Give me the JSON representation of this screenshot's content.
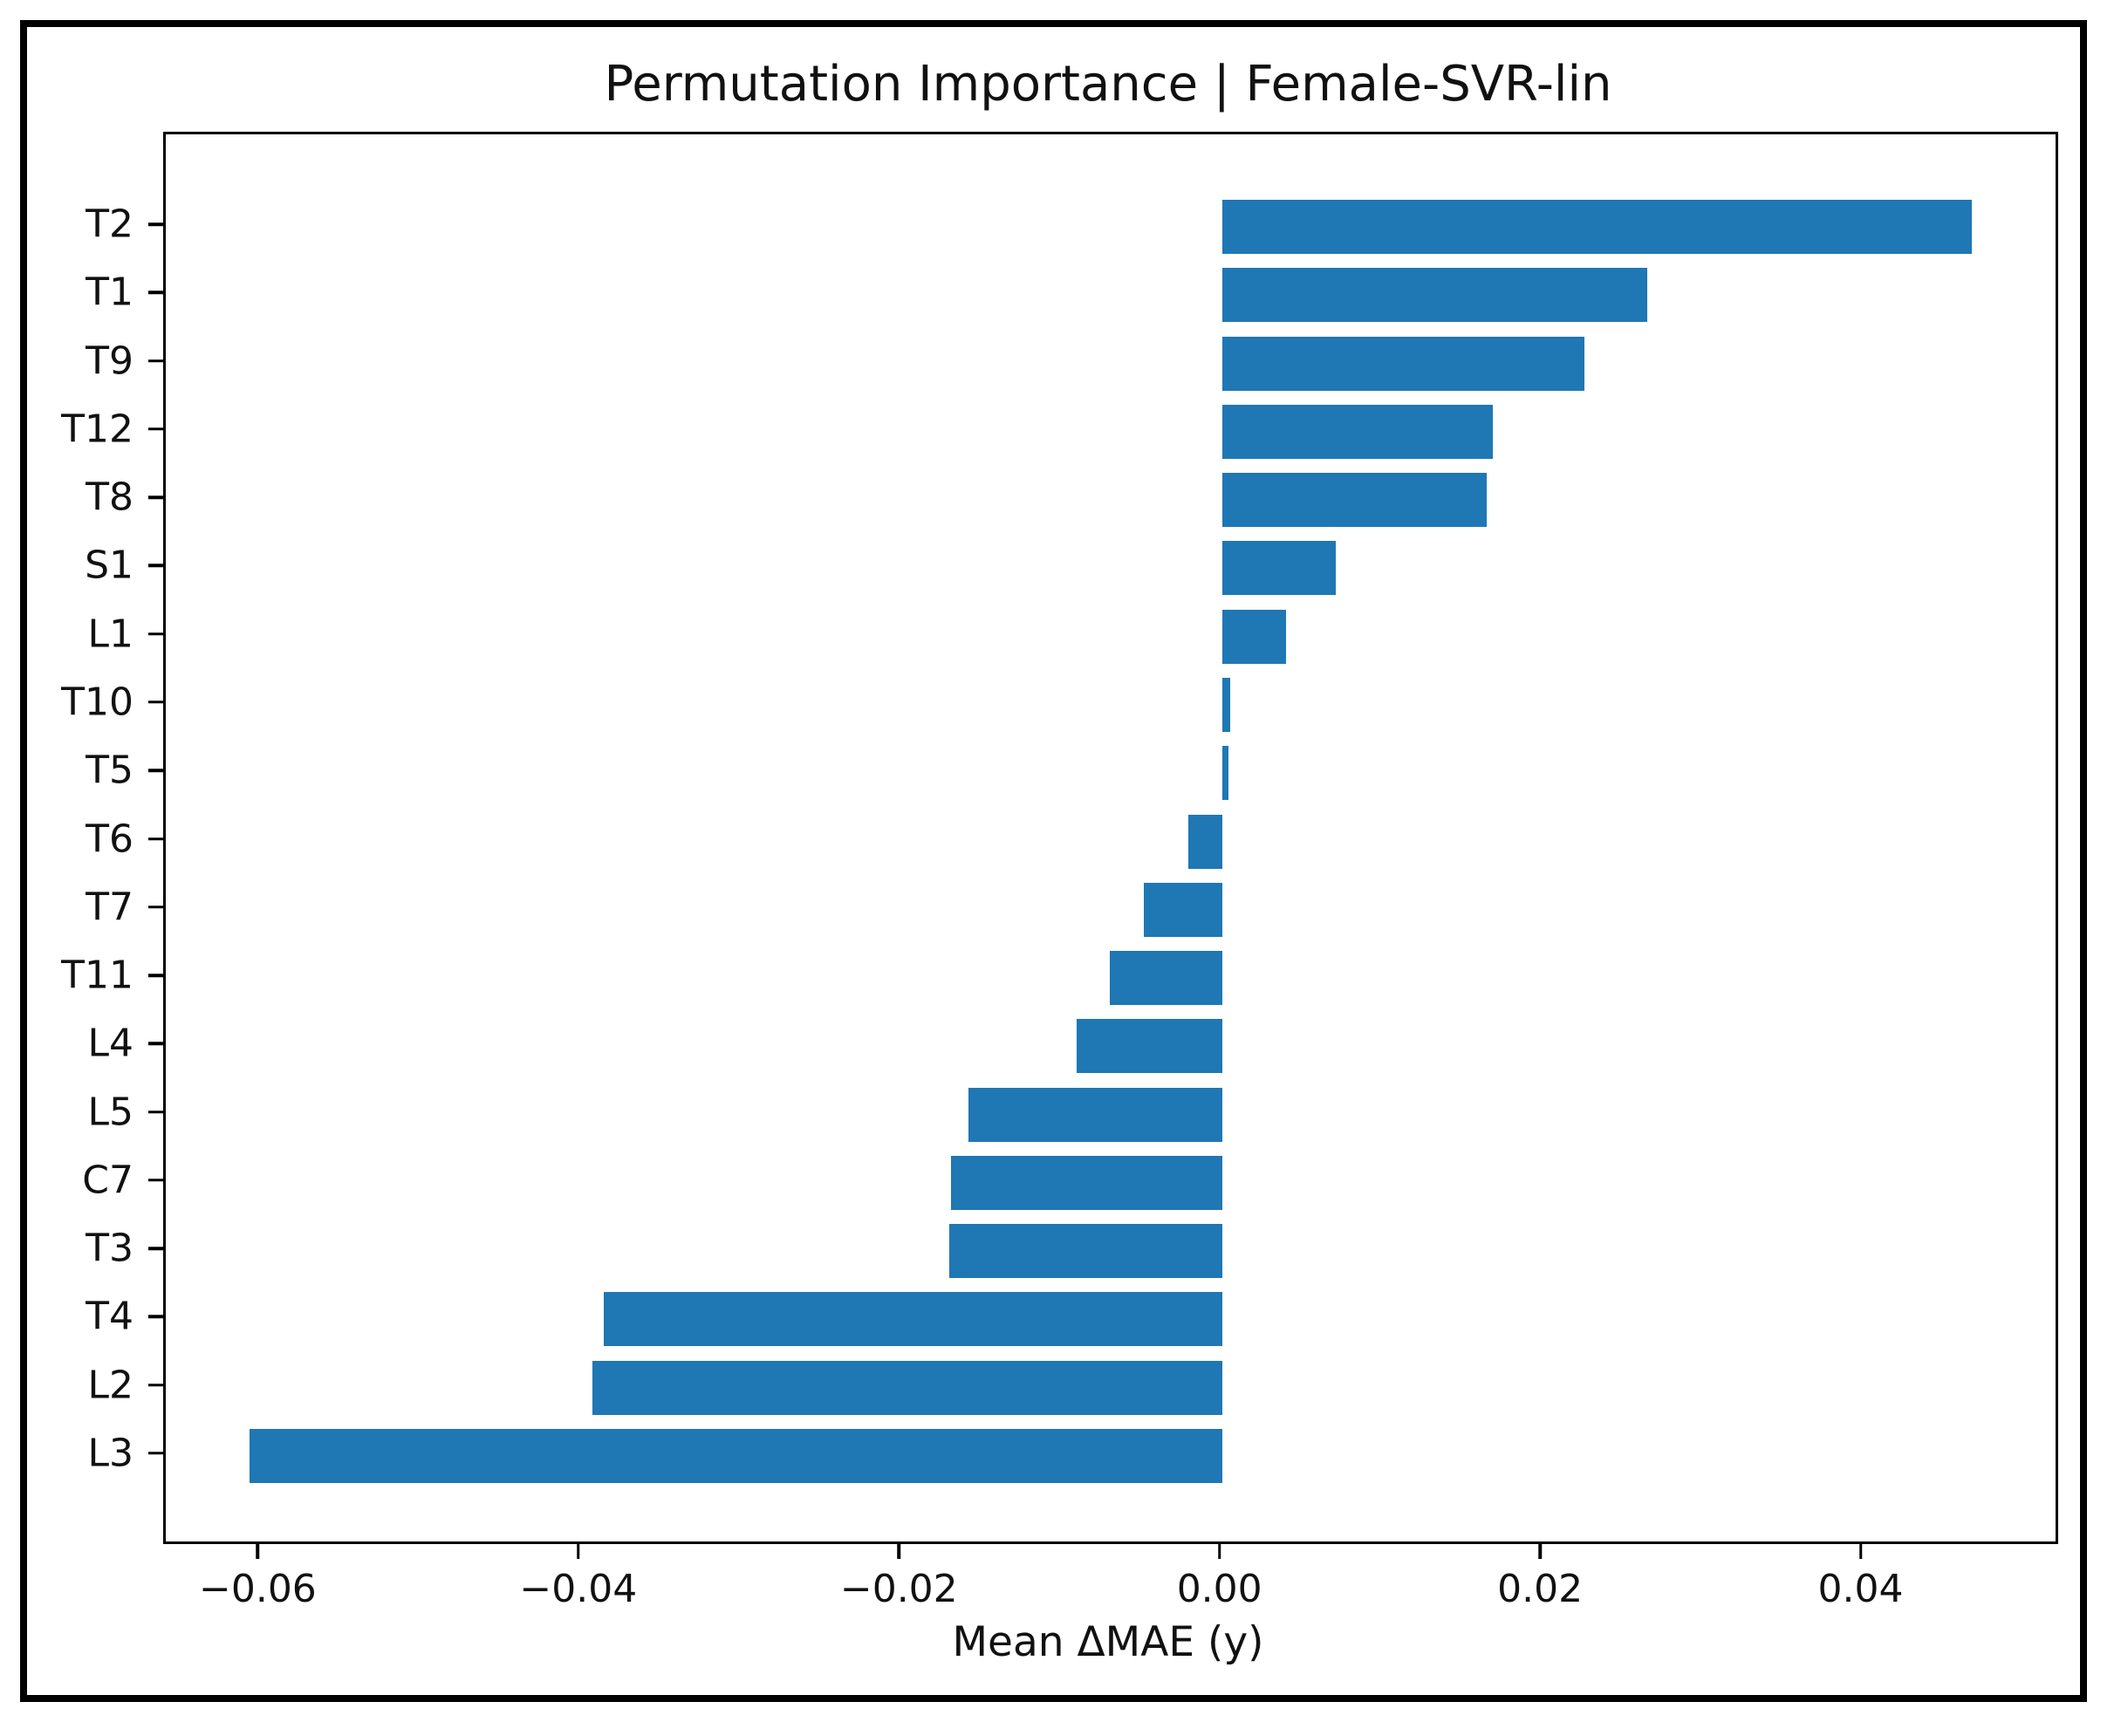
{
  "chart": {
    "title": "Permutation Importance | Female-SVR-lin",
    "xlabel": "Mean ΔMAE (y)"
  },
  "chart_data": {
    "type": "bar",
    "orientation": "horizontal",
    "title": "Permutation Importance | Female-SVR-lin",
    "xlabel": "Mean ΔMAE (y)",
    "ylabel": "",
    "categories": [
      "T2",
      "T1",
      "T9",
      "T12",
      "T8",
      "S1",
      "L1",
      "T10",
      "T5",
      "T6",
      "T7",
      "T11",
      "L4",
      "L5",
      "C7",
      "T3",
      "T4",
      "L2",
      "L3"
    ],
    "values": [
      0.0468,
      0.0265,
      0.0226,
      0.0169,
      0.0165,
      0.0071,
      0.004,
      0.0005,
      0.0004,
      -0.0021,
      -0.0049,
      -0.007,
      -0.0091,
      -0.0158,
      -0.0169,
      -0.017,
      -0.0386,
      -0.0393,
      -0.0607
    ],
    "xlim": [
      -0.0659,
      0.052
    ],
    "xticks": [
      -0.06,
      -0.04,
      -0.02,
      0.0,
      0.02,
      0.04
    ],
    "xtick_labels": [
      "−0.06",
      "−0.04",
      "−0.02",
      "0.00",
      "0.02",
      "0.04"
    ],
    "bar_color": "#1f77b4",
    "spine_color": "#000000",
    "grid": false,
    "legend": null
  }
}
